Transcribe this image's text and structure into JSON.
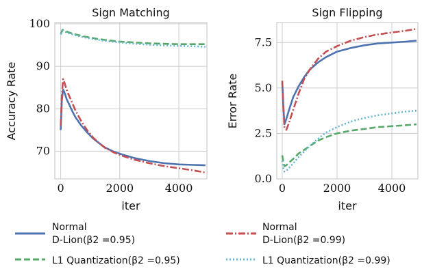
{
  "chart_data": [
    {
      "type": "line",
      "title": "Sign Matching",
      "xlabel": "iter",
      "ylabel": "Accuracy Rate",
      "xlim": [
        -200,
        4950
      ],
      "ylim": [
        63.5,
        100.3
      ],
      "xticks": [
        0,
        2000,
        4000
      ],
      "yticks": [
        70,
        80,
        90,
        100
      ],
      "grid": true,
      "series": [
        {
          "name": "Normal D-Lion(β2 =0.95)",
          "color": "#4c72b0",
          "style": "solid",
          "x": [
            0,
            40,
            80,
            120,
            200,
            300,
            400,
            500,
            700,
            900,
            1100,
            1300,
            1500,
            1800,
            2100,
            2500,
            3000,
            3500,
            4000,
            4500,
            4900
          ],
          "y": [
            75,
            82,
            84.5,
            84,
            82.3,
            80.8,
            79.3,
            78,
            76,
            74.4,
            73,
            71.9,
            70.9,
            69.9,
            69.2,
            68.4,
            67.7,
            67.2,
            66.9,
            66.8,
            66.7
          ]
        },
        {
          "name": "Normal D-Lion(β2 =0.99)",
          "color": "#c44e52",
          "style": "dashdot",
          "x": [
            0,
            40,
            80,
            120,
            200,
            300,
            400,
            500,
            700,
            900,
            1100,
            1300,
            1500,
            1800,
            2100,
            2500,
            3000,
            3500,
            4000,
            4500,
            4900
          ],
          "y": [
            76,
            83,
            87,
            86.3,
            84.5,
            82.8,
            81.2,
            79.6,
            77,
            74.9,
            73.2,
            71.9,
            70.8,
            69.7,
            68.9,
            68,
            67.2,
            66.5,
            66,
            65.5,
            65
          ]
        },
        {
          "name": "L1 Quantization(β2 =0.95)",
          "color": "#55a868",
          "style": "dashed",
          "x": [
            0,
            60,
            150,
            300,
            500,
            800,
            1200,
            1600,
            2000,
            2500,
            3000,
            3500,
            4000,
            4500,
            4900
          ],
          "y": [
            97.5,
            98.6,
            98.3,
            97.9,
            97.5,
            97,
            96.5,
            96.1,
            95.8,
            95.6,
            95.4,
            95.3,
            95.2,
            95.2,
            95.2
          ]
        },
        {
          "name": "L1 Quantization(β2 =0.99)",
          "color": "#64b5cd",
          "style": "dotted",
          "x": [
            0,
            60,
            150,
            300,
            500,
            800,
            1200,
            1600,
            2000,
            2500,
            3000,
            3500,
            4000,
            4500,
            4900
          ],
          "y": [
            97.6,
            98.4,
            98.1,
            97.7,
            97.3,
            96.8,
            96.3,
            95.9,
            95.6,
            95.3,
            95.1,
            94.9,
            94.8,
            94.7,
            94.6
          ]
        }
      ]
    },
    {
      "type": "line",
      "title": "Sign Flipping",
      "xlabel": "iter",
      "ylabel": "Error Rate",
      "xlim": [
        -200,
        4950
      ],
      "ylim": [
        0,
        8.6
      ],
      "xticks": [
        0,
        2000,
        4000
      ],
      "yticks": [
        0.0,
        2.5,
        5.0,
        7.5
      ],
      "ytick_labels": [
        "0.0",
        "2.5",
        "5.0",
        "7.5"
      ],
      "grid": true,
      "series": [
        {
          "name": "Normal D-Lion(β2 =0.95)",
          "color": "#4c72b0",
          "style": "solid",
          "x": [
            0,
            40,
            80,
            150,
            250,
            400,
            600,
            800,
            1000,
            1300,
            1600,
            2000,
            2500,
            3000,
            3500,
            4000,
            4500,
            4900
          ],
          "y": [
            5.3,
            4.0,
            3.0,
            3.3,
            3.8,
            4.5,
            5.1,
            5.6,
            6.0,
            6.4,
            6.7,
            7.0,
            7.2,
            7.35,
            7.45,
            7.5,
            7.55,
            7.6
          ]
        },
        {
          "name": "Normal D-Lion(β2 =0.99)",
          "color": "#c44e52",
          "style": "dashdot",
          "x": [
            0,
            40,
            80,
            150,
            250,
            400,
            600,
            800,
            1000,
            1300,
            1600,
            2000,
            2500,
            3000,
            3500,
            4000,
            4500,
            4900
          ],
          "y": [
            5.4,
            4.0,
            2.8,
            2.7,
            3.1,
            3.8,
            4.7,
            5.5,
            6.0,
            6.6,
            7.0,
            7.3,
            7.6,
            7.8,
            7.95,
            8.05,
            8.15,
            8.25
          ]
        },
        {
          "name": "L1 Quantization(β2 =0.95)",
          "color": "#55a868",
          "style": "dashed",
          "x": [
            0,
            40,
            80,
            150,
            250,
            400,
            600,
            800,
            1000,
            1300,
            1600,
            2000,
            2500,
            3000,
            3500,
            4000,
            4500,
            4900
          ],
          "y": [
            1.3,
            0.9,
            0.7,
            0.75,
            0.9,
            1.1,
            1.4,
            1.6,
            1.8,
            2.1,
            2.3,
            2.5,
            2.65,
            2.75,
            2.85,
            2.9,
            2.95,
            3.0
          ]
        },
        {
          "name": "L1 Quantization(β2 =0.99)",
          "color": "#64b5cd",
          "style": "dotted",
          "x": [
            0,
            40,
            80,
            150,
            250,
            400,
            600,
            800,
            1000,
            1300,
            1600,
            2000,
            2500,
            3000,
            3500,
            4000,
            4500,
            4900
          ],
          "y": [
            1.0,
            0.6,
            0.4,
            0.45,
            0.6,
            0.85,
            1.2,
            1.5,
            1.8,
            2.2,
            2.55,
            2.85,
            3.15,
            3.35,
            3.5,
            3.6,
            3.7,
            3.75
          ]
        }
      ]
    }
  ],
  "legend": {
    "placement": "bottom",
    "entries": [
      {
        "line1": "Normal",
        "line2": "D-Lion(β2 =0.95)",
        "color": "#4c72b0",
        "style": "solid"
      },
      {
        "line1": "Normal",
        "line2": "D-Lion(β2 =0.99)",
        "color": "#c44e52",
        "style": "dashdot"
      },
      {
        "line1": "",
        "line2": "L1 Quantization(β2 =0.95)",
        "color": "#55a868",
        "style": "dashed"
      },
      {
        "line1": "",
        "line2": "L1 Quantization(β2 =0.99)",
        "color": "#64b5cd",
        "style": "dotted"
      }
    ]
  },
  "colors": {
    "grid": "#cccccc",
    "axes": "#cccccc",
    "background": "#ffffff"
  }
}
